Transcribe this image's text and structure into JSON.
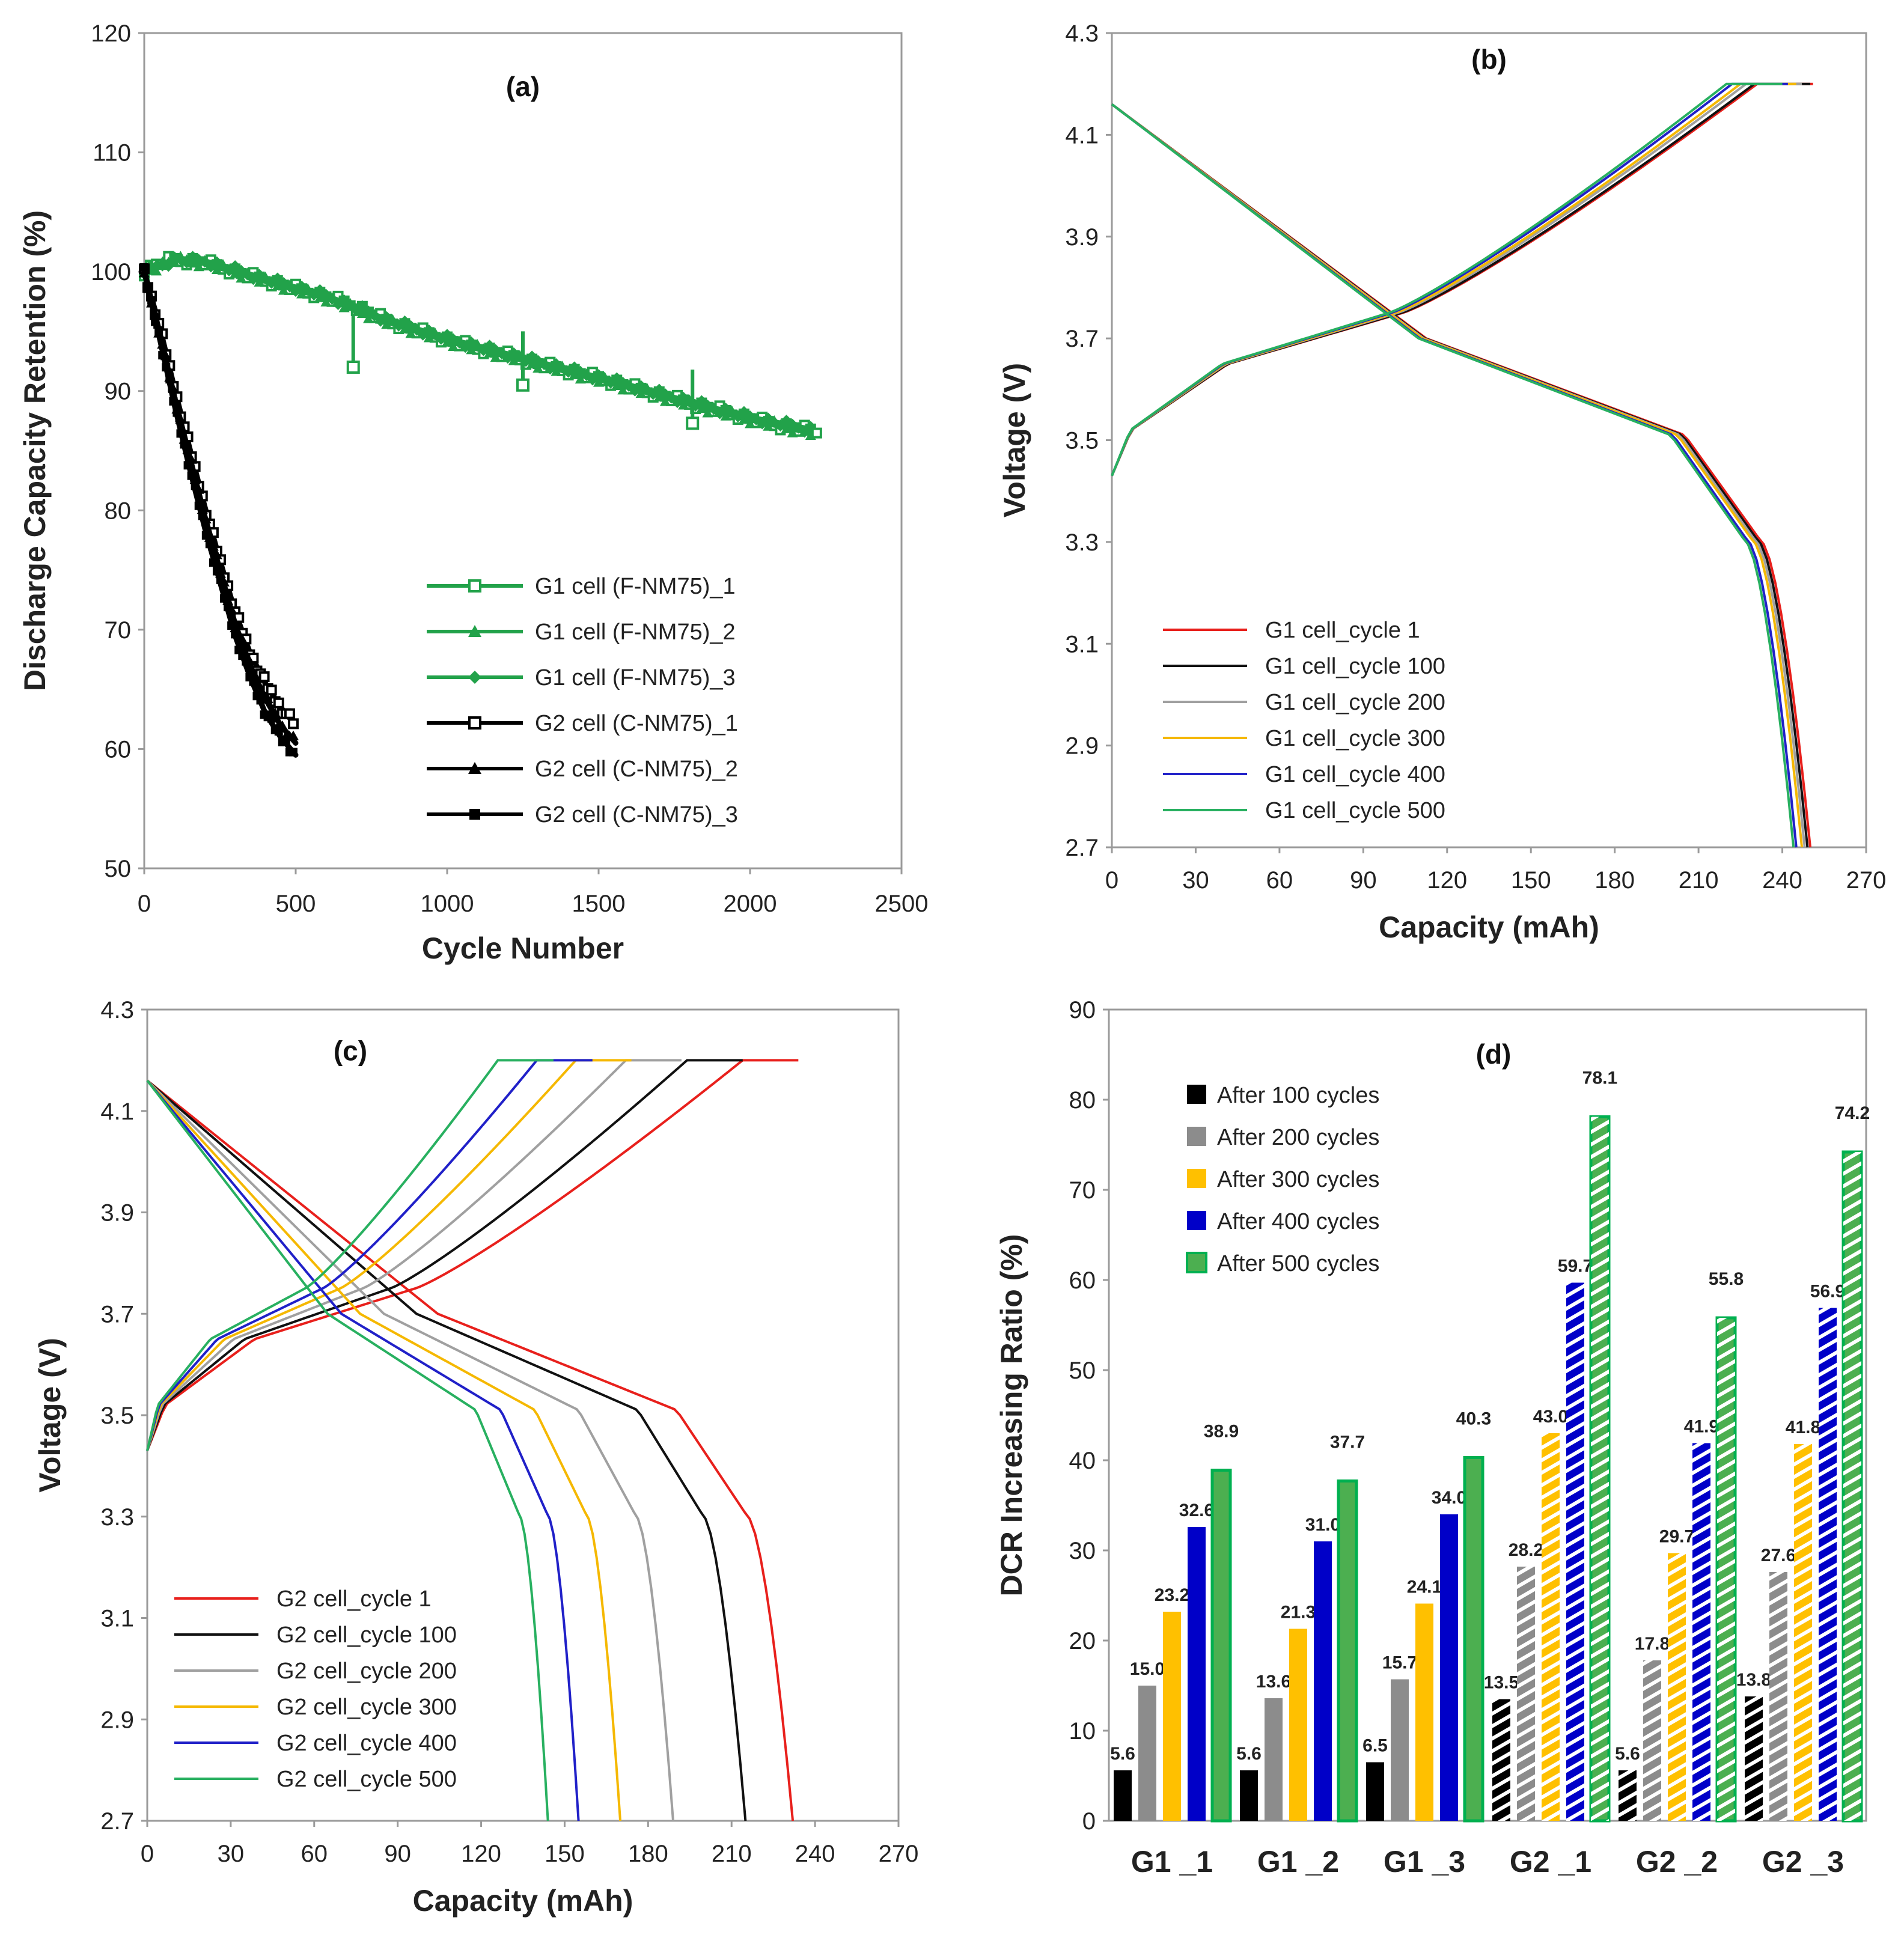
{
  "figure": {
    "background": "#ffffff"
  },
  "chart_data": [
    {
      "id": "a",
      "type": "scatter",
      "panel_label": "(a)",
      "xlabel": "Cycle Number",
      "ylabel": "Discharge Capacity Retention (%)",
      "xlim": [
        0,
        2500
      ],
      "ylim": [
        50,
        120
      ],
      "xticks": [
        0,
        500,
        1000,
        1500,
        2000,
        2500
      ],
      "yticks": [
        50,
        60,
        70,
        80,
        90,
        100,
        110,
        120
      ],
      "legend_position": "bottom-right",
      "series": [
        {
          "name": "G1 cell (F-NM75)_1",
          "color": "#22a24a",
          "marker": "square-open",
          "x": [
            0,
            50,
            100,
            200,
            300,
            400,
            500,
            600,
            690,
            700,
            800,
            900,
            1000,
            1100,
            1200,
            1300,
            1400,
            1500,
            1600,
            1700,
            1800,
            1900,
            2000,
            2100,
            2200,
            2220
          ],
          "y": [
            100,
            100.8,
            101,
            100.8,
            100,
            99.3,
            98.6,
            97.9,
            97.2,
            97.1,
            95.9,
            95.1,
            94.3,
            93.6,
            93.0,
            92.3,
            91.7,
            91.1,
            90.4,
            89.7,
            89.0,
            88.4,
            87.7,
            87.1,
            86.7,
            86.6
          ]
        },
        {
          "name": "G1 cell (F-NM75)_2",
          "color": "#22a24a",
          "marker": "triangle",
          "x": [
            0,
            100,
            200,
            400,
            600,
            800,
            1000,
            1200,
            1400,
            1600,
            1800,
            2000,
            2200
          ],
          "y": [
            100,
            101,
            100.7,
            99.2,
            97.8,
            95.8,
            94.2,
            92.9,
            91.6,
            90.3,
            88.9,
            87.6,
            86.5
          ]
        },
        {
          "name": "G1 cell (F-NM75)_3",
          "color": "#22a24a",
          "marker": "diamond",
          "x": [
            0,
            100,
            200,
            400,
            600,
            800,
            1000,
            1200,
            1400,
            1600,
            1800,
            2000,
            2200
          ],
          "y": [
            100,
            101,
            100.9,
            99.4,
            98.0,
            96.0,
            94.4,
            93.1,
            91.8,
            90.5,
            89.1,
            87.8,
            86.8
          ]
        },
        {
          "name": "G2 cell (C-NM75)_1",
          "color": "#000000",
          "marker": "square-open",
          "x": [
            0,
            50,
            100,
            150,
            200,
            250,
            300,
            350,
            400,
            450,
            500
          ],
          "y": [
            100,
            95.5,
            90.2,
            85.2,
            80.3,
            75.8,
            71.5,
            68.0,
            65.5,
            63.5,
            62.0
          ]
        },
        {
          "name": "G2 cell (C-NM75)_2",
          "color": "#000000",
          "marker": "triangle",
          "x": [
            0,
            50,
            100,
            150,
            200,
            250,
            300,
            350,
            400,
            450,
            500
          ],
          "y": [
            100,
            95.0,
            89.5,
            84.5,
            79.5,
            75.0,
            70.5,
            67.0,
            64.2,
            62.0,
            60.5
          ]
        },
        {
          "name": "G2 cell (C-NM75)_3",
          "color": "#000000",
          "marker": "square",
          "x": [
            0,
            50,
            100,
            150,
            200,
            250,
            300,
            350,
            400,
            450,
            500
          ],
          "y": [
            100,
            94.5,
            88.8,
            83.5,
            78.5,
            74.0,
            69.5,
            66.0,
            63.0,
            61.0,
            59.5
          ]
        }
      ],
      "outliers": [
        {
          "x": 690,
          "y": 92.0,
          "color": "#22a24a"
        },
        {
          "x": 1250,
          "y": 90.5,
          "color": "#22a24a"
        },
        {
          "x": 1810,
          "y": 87.3,
          "color": "#22a24a"
        }
      ]
    },
    {
      "id": "b",
      "type": "line",
      "panel_label": "(b)",
      "xlabel": "Capacity (mAh)",
      "ylabel": "Voltage (V)",
      "xlim": [
        0,
        270
      ],
      "ylim": [
        2.7,
        4.3
      ],
      "xticks": [
        0,
        30,
        60,
        90,
        120,
        150,
        180,
        210,
        240,
        270
      ],
      "yticks": [
        2.7,
        2.9,
        3.1,
        3.3,
        3.5,
        3.7,
        3.9,
        4.1,
        4.3
      ],
      "legend_position": "bottom-left",
      "series": [
        {
          "name": "G1 cell_cycle 1",
          "color": "#e8201c",
          "charge_end": 231,
          "discharge_end": 250
        },
        {
          "name": "G1 cell_cycle 100",
          "color": "#111111",
          "charge_end": 230,
          "discharge_end": 249
        },
        {
          "name": "G1 cell_cycle 200",
          "color": "#a0a0a0",
          "charge_end": 227,
          "discharge_end": 248
        },
        {
          "name": "G1 cell_cycle 300",
          "color": "#f5b800",
          "charge_end": 225,
          "discharge_end": 247
        },
        {
          "name": "G1 cell_cycle 400",
          "color": "#2020c8",
          "charge_end": 222,
          "discharge_end": 245
        },
        {
          "name": "G1 cell_cycle 500",
          "color": "#28b060",
          "charge_end": 220,
          "discharge_end": 244
        }
      ]
    },
    {
      "id": "c",
      "type": "line",
      "panel_label": "(c)",
      "xlabel": "Capacity (mAh)",
      "ylabel": "Voltage (V)",
      "xlim": [
        0,
        270
      ],
      "ylim": [
        2.7,
        4.3
      ],
      "xticks": [
        0,
        30,
        60,
        90,
        120,
        150,
        180,
        210,
        240,
        270
      ],
      "yticks": [
        2.7,
        2.9,
        3.1,
        3.3,
        3.5,
        3.7,
        3.9,
        4.1,
        4.3
      ],
      "legend_position": "bottom-left",
      "series": [
        {
          "name": "G2 cell_cycle 1",
          "color": "#e8201c",
          "charge_end": 214,
          "discharge_end": 232
        },
        {
          "name": "G2 cell_cycle 100",
          "color": "#111111",
          "charge_end": 194,
          "discharge_end": 215
        },
        {
          "name": "G2  cell_cycle 200",
          "color": "#a0a0a0",
          "charge_end": 172,
          "discharge_end": 189
        },
        {
          "name": "G2  cell_cycle 300",
          "color": "#f5b800",
          "charge_end": 154,
          "discharge_end": 170
        },
        {
          "name": "G2  cell_cycle 400",
          "color": "#2020c8",
          "charge_end": 140,
          "discharge_end": 155
        },
        {
          "name": "G2  cell_cycle 500",
          "color": "#28b060",
          "charge_end": 126,
          "discharge_end": 144
        }
      ]
    },
    {
      "id": "d",
      "type": "bar",
      "panel_label": "(d)",
      "xlabel": "",
      "ylabel": "DCR Increasing Ratio (%)",
      "ylim": [
        0,
        90
      ],
      "yticks": [
        0,
        10,
        20,
        30,
        40,
        50,
        60,
        70,
        80,
        90
      ],
      "legend_position": "top-left",
      "categories": [
        "G1 _1",
        "G1 _2",
        "G1 _3",
        "G2 _1",
        "G2 _2",
        "G2 _3"
      ],
      "hatched_categories": [
        "G2 _1",
        "G2 _2",
        "G2 _3"
      ],
      "series": [
        {
          "name": "After 100 cycles",
          "color": "#000000",
          "values": [
            5.6,
            5.6,
            6.5,
            13.5,
            5.6,
            13.8
          ],
          "labels": [
            "5.6",
            "5.6",
            "6.5",
            "13.5",
            "5.6",
            "13.8"
          ]
        },
        {
          "name": "After 200 cycles",
          "color": "#8c8c8c",
          "values": [
            15.0,
            13.6,
            15.7,
            28.2,
            17.8,
            27.6
          ],
          "labels": [
            "15.0",
            "13.6",
            "15.7",
            "28.2",
            "17.8",
            "27.6"
          ]
        },
        {
          "name": "After 300 cycles",
          "color": "#ffc000",
          "values": [
            23.2,
            21.3,
            24.1,
            43.0,
            29.7,
            41.8
          ],
          "labels": [
            "23.2",
            "21.3",
            "24.1",
            "43.0",
            "29.7",
            "41.8"
          ]
        },
        {
          "name": "After 400 cycles",
          "color": "#0000c8",
          "values": [
            32.6,
            31.0,
            34.0,
            59.7,
            41.9,
            56.9
          ],
          "labels": [
            "32.6",
            "31.0",
            "34.0",
            "59.7",
            "41.9",
            "56.9"
          ]
        },
        {
          "name": "After 500 cycles",
          "color": "#4caf50",
          "edge": "#00b050",
          "values": [
            38.9,
            37.7,
            40.3,
            78.1,
            55.8,
            74.2
          ],
          "labels": [
            "38.9",
            "37.7",
            "40.3",
            "78.1",
            "55.8",
            "74.2"
          ]
        }
      ]
    }
  ]
}
